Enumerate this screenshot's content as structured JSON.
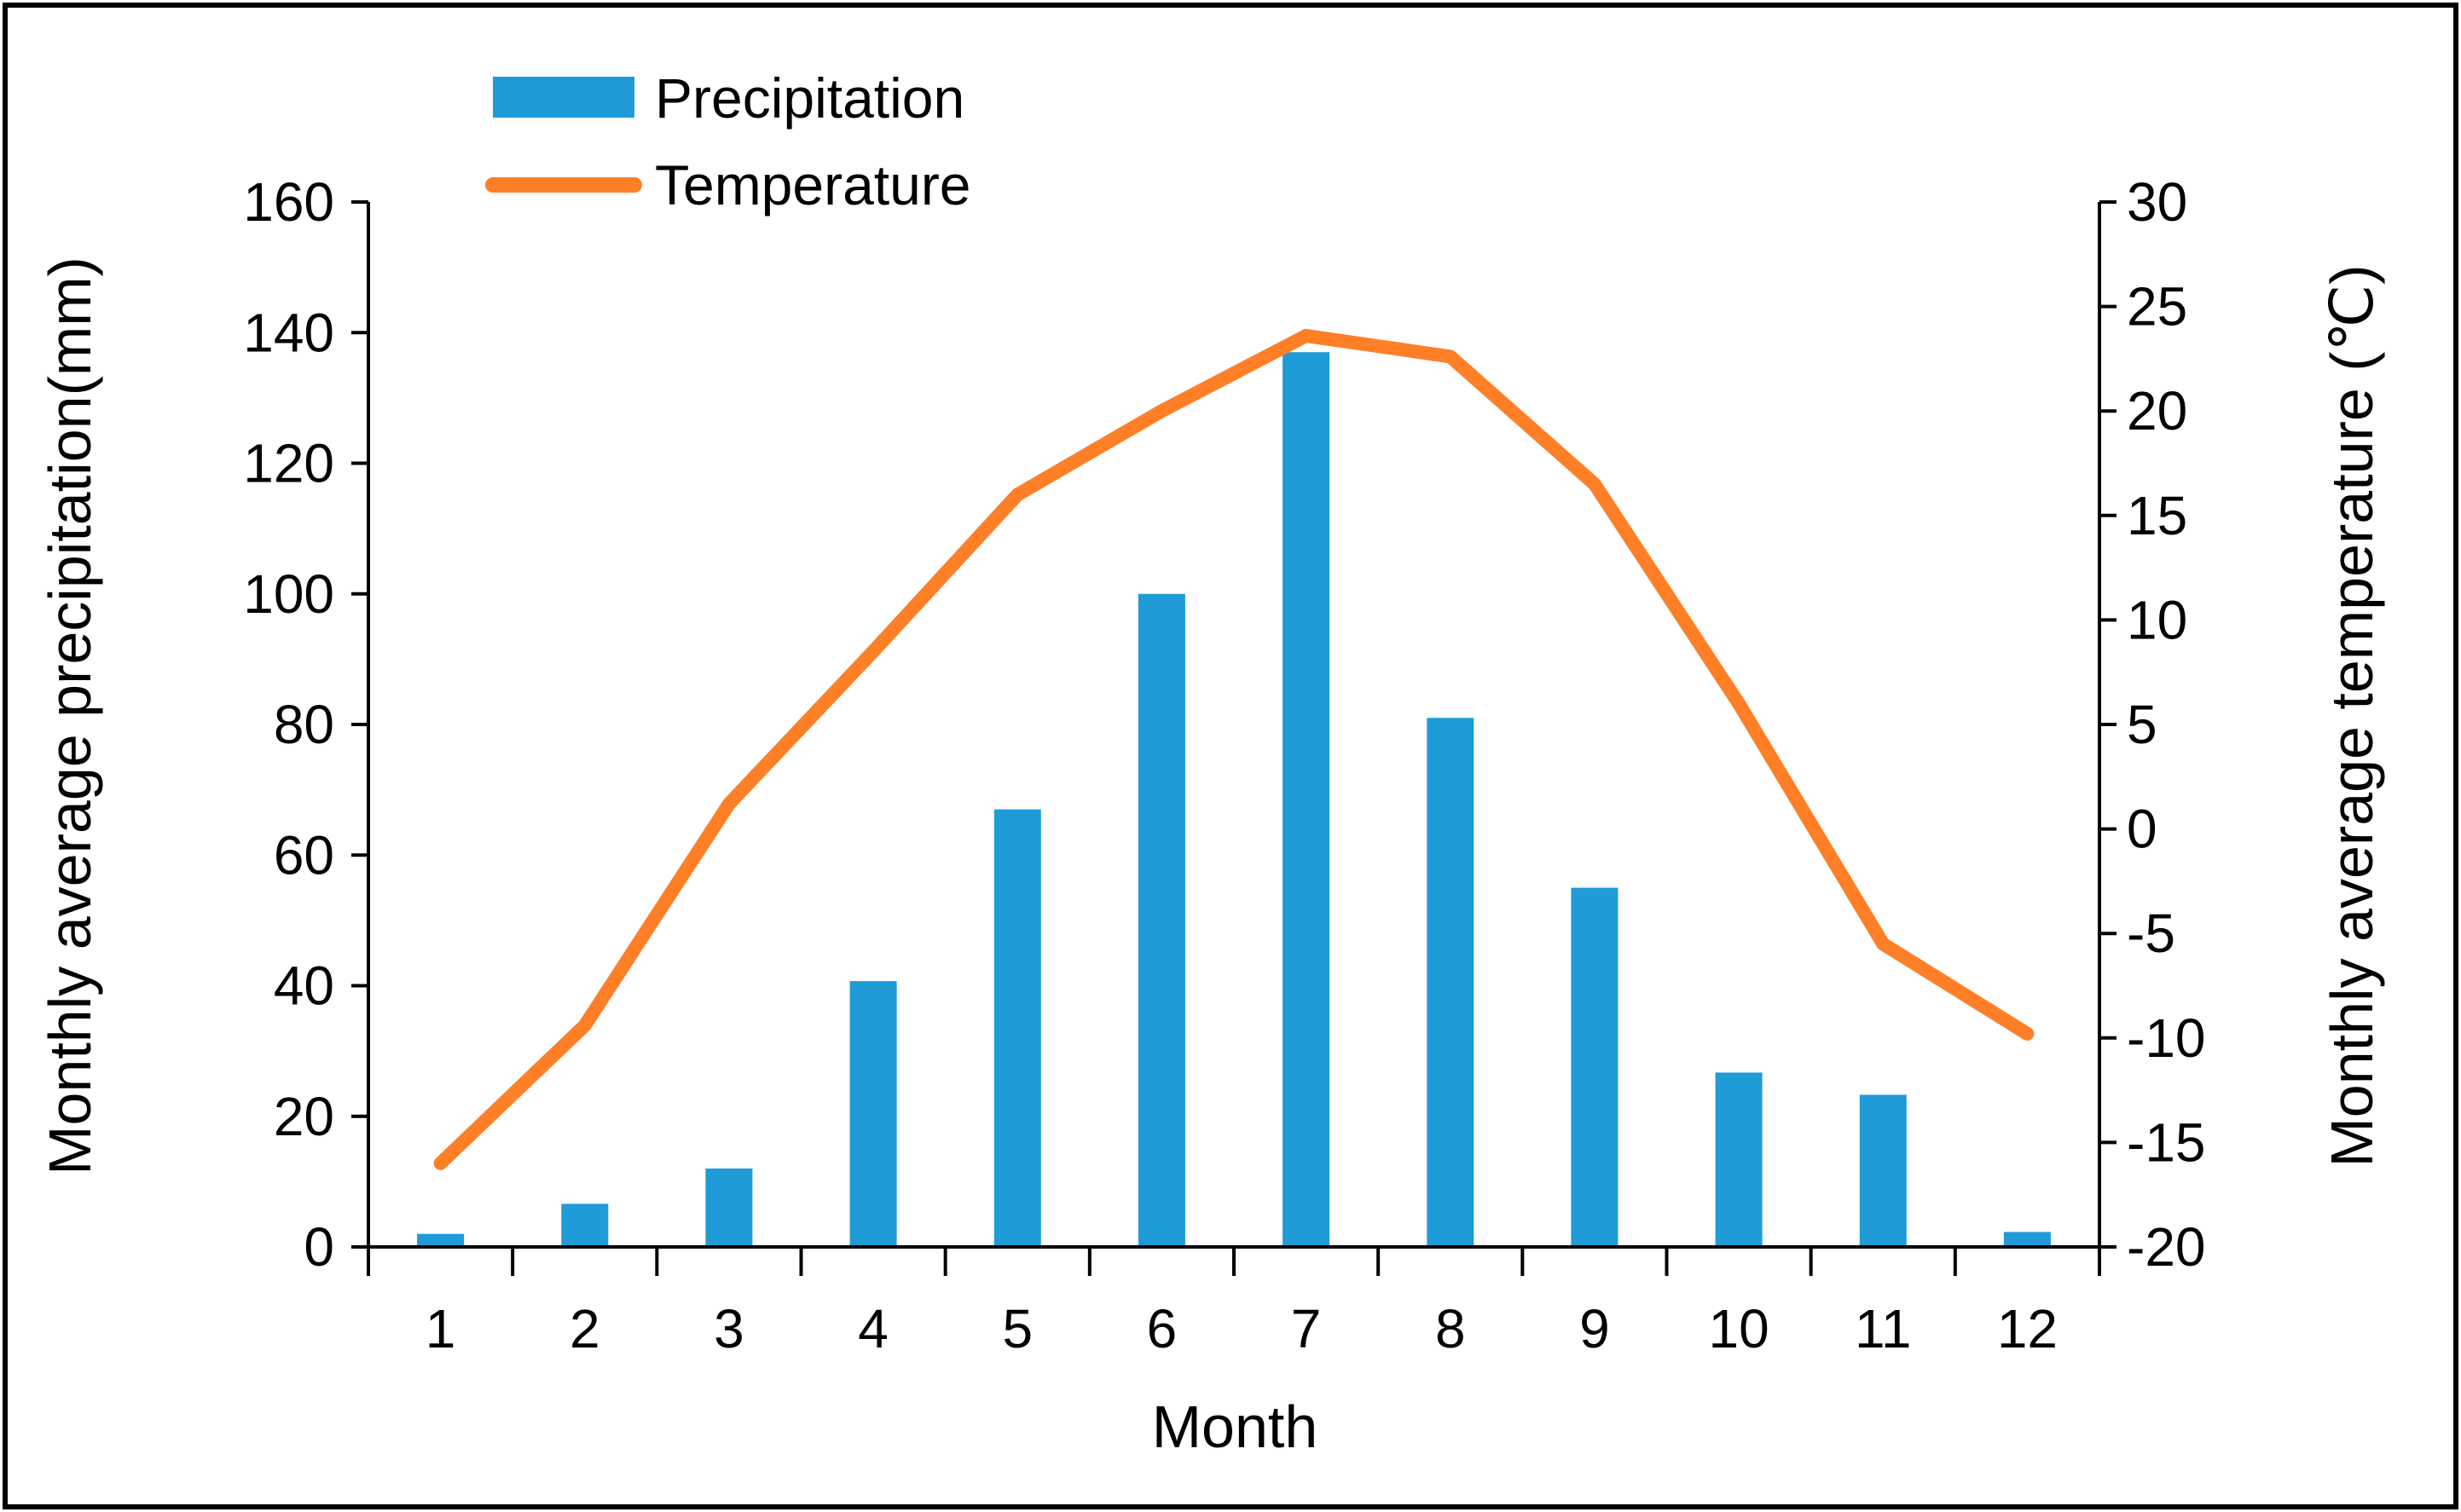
{
  "chart_data": {
    "type": "bar+line",
    "title": "",
    "xlabel": "Month",
    "ylabel": "Monthly average precipitation(mm)",
    "y2label": "Monthly average temperature (℃)",
    "categories": [
      "1",
      "2",
      "3",
      "4",
      "5",
      "6",
      "7",
      "8",
      "9",
      "10",
      "11",
      "12"
    ],
    "ylim": [
      0,
      160
    ],
    "yticks": [
      0,
      20,
      40,
      60,
      80,
      100,
      120,
      140,
      160
    ],
    "y2lim": [
      -20,
      30
    ],
    "y2ticks": [
      -20,
      -15,
      -10,
      -5,
      0,
      5,
      10,
      15,
      20,
      25,
      30
    ],
    "legend_position": "top-left",
    "grid": false,
    "series": [
      {
        "name": "Precipitation",
        "type": "bar",
        "axis": "left",
        "color": "#1F9BD7",
        "values": [
          2,
          6.6,
          12,
          40.7,
          67,
          100,
          137,
          81,
          55,
          26.7,
          23.3,
          2.3
        ]
      },
      {
        "name": "Temperature",
        "type": "line",
        "axis": "right",
        "color": "#FF7F27",
        "values": [
          -16,
          -9.4,
          1.2,
          8.5,
          16,
          20,
          23.6,
          22.6,
          16.5,
          6,
          -5.5,
          -9.8
        ]
      }
    ]
  }
}
